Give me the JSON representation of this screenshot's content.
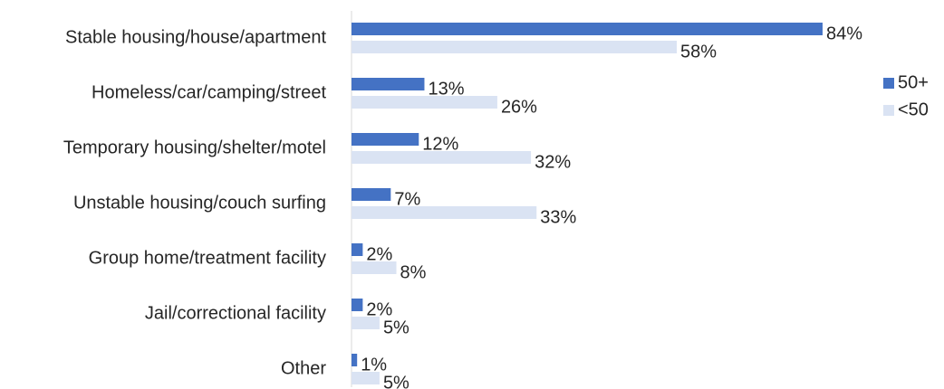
{
  "chart_data": {
    "type": "hbar",
    "categories": [
      "Stable housing/house/apartment",
      "Homeless/car/camping/street",
      "Temporary housing/shelter/motel",
      "Unstable housing/couch surfing",
      "Group home/treatment facility",
      "Jail/correctional facility",
      "Other"
    ],
    "series": [
      {
        "name": "50+",
        "color": "#4472c4",
        "values": [
          84,
          13,
          12,
          7,
          2,
          2,
          1
        ],
        "value_labels": [
          "84%",
          "13%",
          "12%",
          "7%",
          "2%",
          "2%",
          "1%"
        ]
      },
      {
        "name": "<50",
        "color": "#dae3f3",
        "values": [
          58,
          26,
          32,
          33,
          8,
          5,
          5
        ],
        "value_labels": [
          "58%",
          "26%",
          "32%",
          "33%",
          "8%",
          "5%",
          "5%"
        ]
      }
    ],
    "xlim": [
      0,
      100
    ],
    "legend": "right"
  }
}
